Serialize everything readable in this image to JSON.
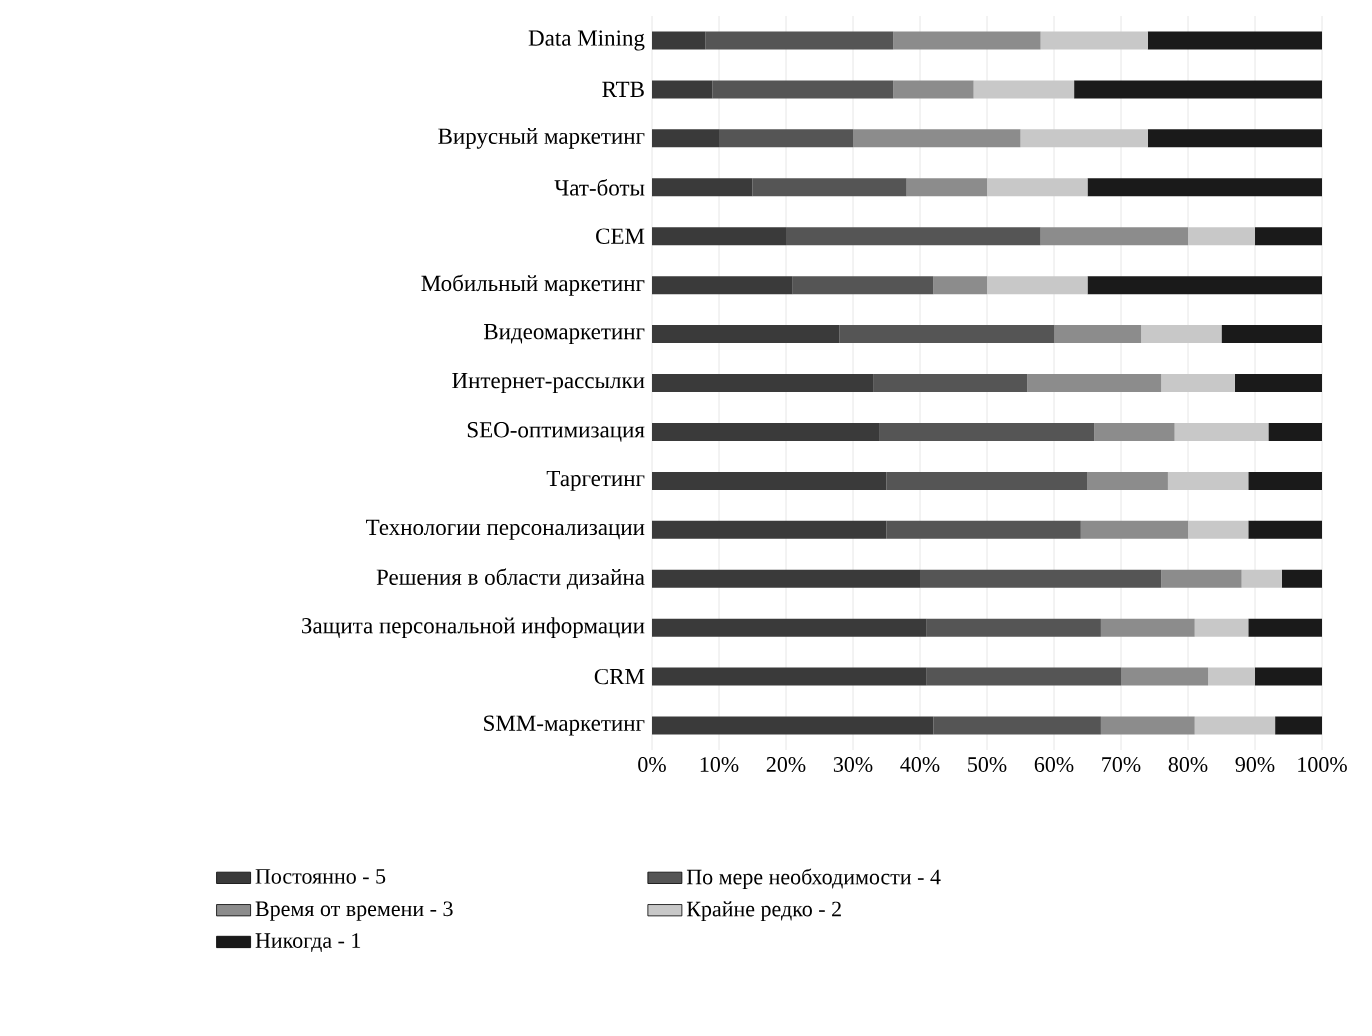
{
  "chart_data": {
    "type": "bar",
    "orientation": "horizontal",
    "stacked": true,
    "categories": [
      "Data Mining",
      "RTB",
      "Вирусный маркетинг",
      "Чат-боты",
      "CEM",
      "Мобильный маркетинг",
      "Видеомаркетинг",
      "Интернет-рассылки",
      "SEO-оптимизация",
      "Таргетинг",
      "Технологии персонализации",
      "Решения в области дизайна",
      "Защита персональной информации",
      "CRM",
      "SMM-маркетинг"
    ],
    "series": [
      {
        "name": "Постоянно - 5",
        "color": "#3a3a3a",
        "values": [
          8,
          9,
          10,
          15,
          20,
          21,
          28,
          33,
          34,
          35,
          35,
          40,
          41,
          41,
          42
        ]
      },
      {
        "name": "По мере необходимости - 4",
        "color": "#555555",
        "values": [
          28,
          27,
          20,
          23,
          38,
          21,
          32,
          23,
          32,
          30,
          29,
          36,
          26,
          29,
          25
        ]
      },
      {
        "name": "Время от времени - 3",
        "color": "#8c8c8c",
        "values": [
          22,
          12,
          25,
          12,
          22,
          8,
          13,
          20,
          12,
          12,
          16,
          12,
          14,
          13,
          14
        ]
      },
      {
        "name": "Крайне редко - 2",
        "color": "#c8c8c8",
        "values": [
          16,
          15,
          19,
          15,
          10,
          15,
          12,
          11,
          14,
          12,
          9,
          6,
          8,
          7,
          12
        ]
      },
      {
        "name": "Никогда - 1",
        "color": "#1a1a1a",
        "values": [
          26,
          37,
          26,
          35,
          10,
          35,
          15,
          13,
          8,
          11,
          11,
          6,
          11,
          10,
          7
        ]
      }
    ],
    "xlim": [
      0,
      100
    ],
    "xticks": [
      {
        "value": 0,
        "label": "0%"
      },
      {
        "value": 10,
        "label": "10%"
      },
      {
        "value": 20,
        "label": "20%"
      },
      {
        "value": 30,
        "label": "30%"
      },
      {
        "value": 40,
        "label": "40%"
      },
      {
        "value": 50,
        "label": "50%"
      },
      {
        "value": 60,
        "label": "60%"
      },
      {
        "value": 70,
        "label": "70%"
      },
      {
        "value": 80,
        "label": "80%"
      },
      {
        "value": 90,
        "label": "90%"
      },
      {
        "value": 100,
        "label": "100%"
      }
    ],
    "grid": "x",
    "legend": "bottom"
  }
}
